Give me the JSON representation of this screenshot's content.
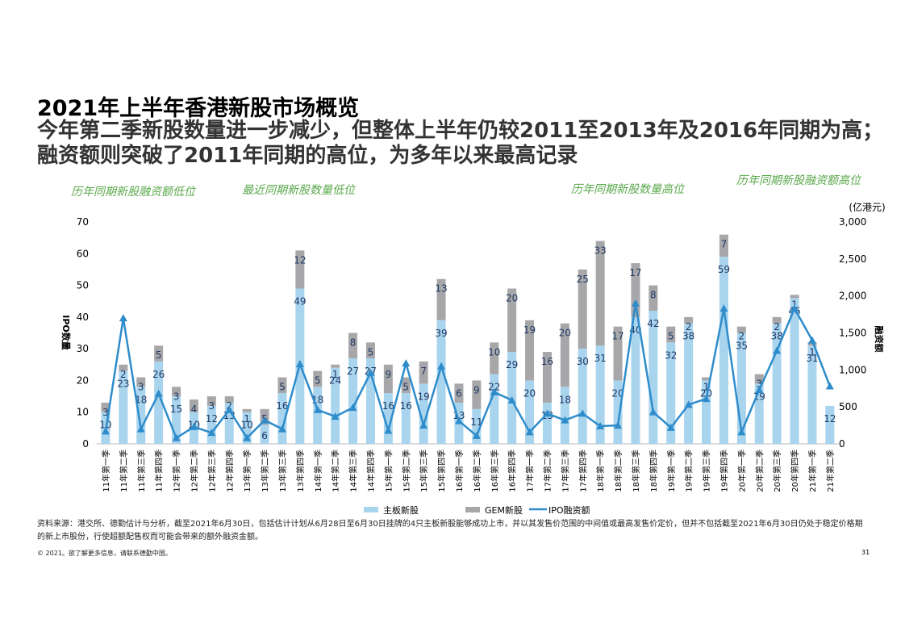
{
  "title": "2021年上半年香港新股市场概览",
  "subtitle": "今年第二季新股数量进一步减少，但整体上半年仍较2011至2013年及2016年同期为高；融资额则突破了2011年同期的高位，为多年以来最高记录",
  "footnote": "资料来源：港交所、德勤估计与分析，截至2021年6月30日，包括估计计划从6月28日至6月30日挂牌的4只主板新股能够成功上市，并以其发售价范围的中间值或最高发售价定价，但并不包括截至2021年6月30日仍处于稳定价格期的新上市股份，行使超额配售权而可能会带来的额外融资金额。",
  "copyright": "© 2021。欲了解更多信息，请联系德勤中国。",
  "page_number": "31",
  "colors": {
    "main": "#a9d4ee",
    "gem": "#a7a7a9",
    "line": "#2e8ccb",
    "label": "#1f3864"
  },
  "chart_data": {
    "type": "bar",
    "categories": [
      "11年第一季",
      "11年第二季",
      "11年第三季",
      "11年第四季",
      "12年第一季",
      "12年第二季",
      "12年第三季",
      "12年第四季",
      "13年第一季",
      "13年第二季",
      "13年第三季",
      "13年第四季",
      "14年第一季",
      "14年第二季",
      "14年第三季",
      "14年第四季",
      "15年第一季",
      "15年第二季",
      "15年第三季",
      "15年第四季",
      "16年第一季",
      "16年第二季",
      "16年第三季",
      "16年第四季",
      "17年第一季",
      "17年第二季",
      "17年第三季",
      "17年第四季",
      "18年第一季",
      "18年第二季",
      "18年第三季",
      "18年第四季",
      "19年第一季",
      "19年第二季",
      "19年第三季",
      "19年第四季",
      "20年第一季",
      "20年第二季",
      "20年第三季",
      "20年第四季",
      "21年第一季",
      "21年第二季"
    ],
    "series": [
      {
        "name": "主板新股",
        "values": [
          10,
          23,
          18,
          26,
          15,
          10,
          12,
          13,
          10,
          6,
          16,
          49,
          18,
          24,
          27,
          27,
          16,
          16,
          19,
          39,
          13,
          11,
          22,
          29,
          20,
          13,
          18,
          30,
          31,
          20,
          40,
          42,
          32,
          38,
          20,
          59,
          35,
          19,
          38,
          46,
          31,
          12
        ]
      },
      {
        "name": "GEM新股",
        "values": [
          3,
          2,
          3,
          5,
          3,
          4,
          3,
          2,
          1,
          5,
          5,
          12,
          5,
          1,
          8,
          5,
          9,
          5,
          7,
          13,
          6,
          9,
          10,
          20,
          19,
          16,
          20,
          25,
          33,
          17,
          17,
          8,
          5,
          2,
          1,
          7,
          2,
          3,
          2,
          1,
          1,
          0
        ]
      },
      {
        "name": "IPO融资额",
        "axis": "right",
        "values": [
          170,
          1700,
          200,
          680,
          80,
          230,
          150,
          460,
          80,
          320,
          200,
          1080,
          460,
          370,
          490,
          960,
          180,
          1090,
          250,
          1050,
          310,
          110,
          700,
          590,
          160,
          410,
          320,
          410,
          240,
          250,
          1900,
          430,
          220,
          530,
          610,
          1830,
          160,
          730,
          1260,
          1830,
          1400,
          780
        ]
      }
    ],
    "ylim": [
      0,
      70
    ],
    "y2lim": [
      0,
      3000
    ],
    "yticks": [
      "0",
      "10",
      "20",
      "30",
      "40",
      "50",
      "60",
      "70"
    ],
    "y2ticks": [
      "0",
      "500",
      "1,000",
      "1,500",
      "2,000",
      "2,500",
      "3,000"
    ],
    "ylabel": "IPO数量",
    "y2label": "融资额",
    "y2unit": "(亿港元)",
    "annotations": [
      "历年同期新股融资额低位",
      "最近同期新股数量低位",
      "历年同期新股数量高位",
      "历年同期新股融资额高位"
    ]
  }
}
